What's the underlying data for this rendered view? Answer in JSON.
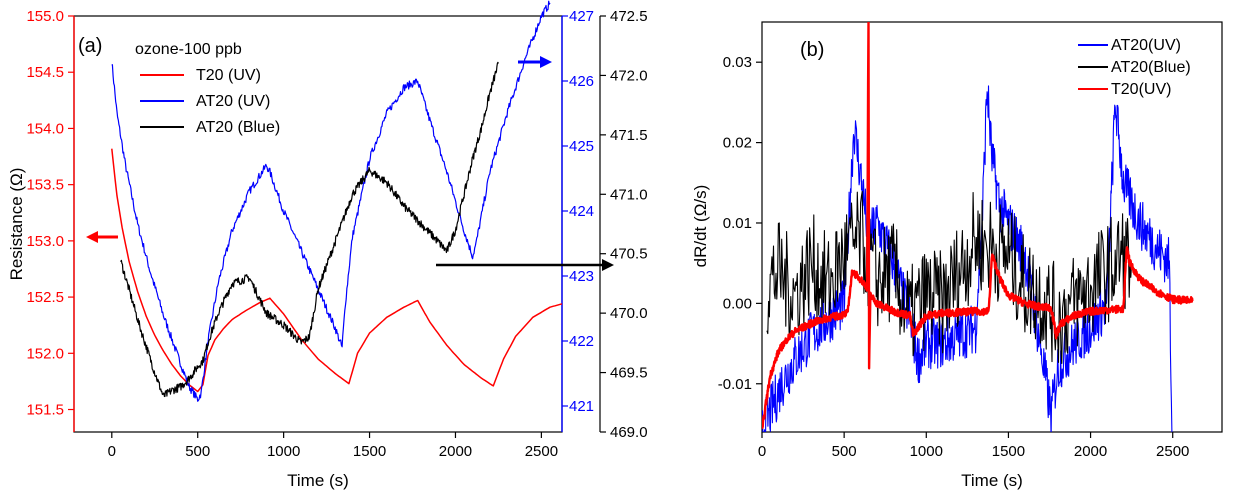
{
  "chart_data": [
    {
      "panel": "(a)",
      "type": "line",
      "xlabel": "Time (s)",
      "ylabel": "Resistance (Ω)",
      "xlim": [
        -220,
        2620
      ],
      "xticks": [
        0,
        500,
        1000,
        1500,
        2000,
        2500
      ],
      "legend_title": "ozone-100 ppb",
      "legend_position": "top-left",
      "y_axes": [
        {
          "id": "red",
          "side": "left",
          "color": "#ff0000",
          "lim": [
            151.3,
            155.0
          ],
          "ticks": [
            "155.0",
            "154.5",
            "154.0",
            "153.5",
            "153.0",
            "152.5",
            "152.0",
            "151.5"
          ]
        },
        {
          "id": "blue",
          "side": "right",
          "color": "#0000ff",
          "lim": [
            420.6,
            427.0
          ],
          "ticks": [
            "427",
            "426",
            "425",
            "424",
            "423",
            "422",
            "421"
          ]
        },
        {
          "id": "black",
          "side": "right-outer",
          "color": "#000000",
          "lim": [
            469.0,
            472.5
          ],
          "ticks": [
            "472.5",
            "472.0",
            "471.5",
            "471.0",
            "470.5",
            "470.0",
            "469.5",
            "469.0"
          ]
        }
      ],
      "annotations": [
        {
          "type": "arrow",
          "points_to": "left axis",
          "color": "#ff0000"
        },
        {
          "type": "arrow",
          "points_to": "blue axis",
          "color": "#0000ff"
        },
        {
          "type": "arrow",
          "points_to": "outer black axis",
          "color": "#000000"
        }
      ],
      "series": [
        {
          "name": "T20 (UV)",
          "color": "#ff0000",
          "axis": "red",
          "x": [
            0,
            30,
            60,
            100,
            150,
            200,
            250,
            300,
            350,
            400,
            450,
            500,
            530,
            560,
            600,
            650,
            700,
            780,
            860,
            920,
            1000,
            1100,
            1200,
            1300,
            1380,
            1430,
            1500,
            1600,
            1700,
            1780,
            1850,
            1950,
            2050,
            2150,
            2220,
            2280,
            2350,
            2450,
            2550,
            2620
          ],
          "y": [
            153.82,
            153.4,
            153.12,
            152.82,
            152.55,
            152.33,
            152.16,
            152.02,
            151.9,
            151.8,
            151.72,
            151.66,
            151.72,
            151.98,
            152.12,
            152.22,
            152.3,
            152.38,
            152.45,
            152.49,
            152.35,
            152.13,
            151.95,
            151.82,
            151.73,
            152.0,
            152.18,
            152.32,
            152.41,
            152.47,
            152.28,
            152.07,
            151.9,
            151.78,
            151.71,
            151.95,
            152.15,
            152.32,
            152.41,
            152.44
          ]
        },
        {
          "name": "AT20 (UV)",
          "color": "#0000ff",
          "axis": "blue",
          "x": [
            0,
            30,
            80,
            150,
            220,
            300,
            380,
            450,
            500,
            520,
            560,
            620,
            700,
            800,
            900,
            920,
            1000,
            1100,
            1200,
            1300,
            1340,
            1360,
            1400,
            1500,
            1600,
            1700,
            1780,
            1850,
            1950,
            2050,
            2100,
            2120,
            2200,
            2300,
            2400,
            2500,
            2550
          ],
          "y": [
            426.3,
            425.5,
            424.7,
            423.8,
            423.1,
            422.4,
            421.8,
            421.3,
            421.1,
            421.2,
            422.0,
            422.9,
            423.7,
            424.3,
            424.7,
            424.6,
            424.0,
            423.4,
            422.8,
            422.2,
            421.9,
            422.6,
            423.6,
            424.8,
            425.5,
            425.9,
            426.0,
            425.4,
            424.6,
            423.7,
            423.3,
            423.5,
            424.6,
            425.5,
            426.3,
            427.0,
            427.2
          ]
        },
        {
          "name": "AT20 (Blue)",
          "color": "#000000",
          "axis": "black",
          "x": [
            50,
            80,
            120,
            160,
            200,
            250,
            300,
            350,
            400,
            450,
            500,
            530,
            570,
            620,
            700,
            800,
            900,
            1000,
            1100,
            1150,
            1200,
            1300,
            1400,
            1500,
            1600,
            1700,
            1800,
            1900,
            1950,
            2000,
            2050,
            2100,
            2150,
            2200,
            2250
          ],
          "y": [
            470.45,
            470.3,
            470.1,
            469.9,
            469.72,
            469.5,
            469.3,
            469.35,
            469.38,
            469.45,
            469.55,
            469.6,
            469.8,
            470.0,
            470.25,
            470.3,
            470.0,
            469.9,
            469.75,
            469.8,
            470.2,
            470.6,
            471.0,
            471.2,
            471.1,
            470.9,
            470.75,
            470.6,
            470.52,
            470.7,
            471.0,
            471.3,
            471.55,
            471.85,
            472.1
          ]
        }
      ]
    },
    {
      "panel": "(b)",
      "type": "line",
      "xlabel": "Time (s)",
      "ylabel": "dR/dt (Ω/s)",
      "xlim": [
        0,
        2800
      ],
      "ylim": [
        -0.016,
        0.035
      ],
      "xticks": [
        "0",
        "500",
        "1000",
        "1500",
        "2000",
        "2500"
      ],
      "yticks": [
        "0.03",
        "0.02",
        "0.01",
        "0.00",
        "-0.01"
      ],
      "legend_position": "top-right",
      "series": [
        {
          "name": "AT20(UV)",
          "color": "#0000ff",
          "x": [
            0,
            60,
            120,
            200,
            300,
            400,
            500,
            560,
            600,
            650,
            700,
            800,
            900,
            950,
            1000,
            1100,
            1200,
            1300,
            1340,
            1370,
            1400,
            1450,
            1500,
            1600,
            1700,
            1760,
            1800,
            1900,
            2000,
            2100,
            2150,
            2200,
            2300,
            2400,
            2480,
            2495
          ],
          "y": [
            -0.016,
            -0.013,
            -0.01,
            -0.007,
            -0.004,
            -0.002,
            0.0,
            0.022,
            0.016,
            0.008,
            0.01,
            0.005,
            -0.002,
            -0.007,
            -0.005,
            -0.005,
            -0.004,
            -0.003,
            0.01,
            0.027,
            0.018,
            0.012,
            0.01,
            0.006,
            -0.006,
            -0.014,
            -0.008,
            -0.005,
            -0.003,
            0.0,
            0.025,
            0.015,
            0.01,
            0.007,
            0.005,
            -0.016
          ]
        },
        {
          "name": "AT20(Blue)",
          "color": "#000000",
          "x": [
            30,
            100,
            200,
            300,
            400,
            500,
            600,
            700,
            800,
            900,
            1000,
            1100,
            1200,
            1300,
            1400,
            1500,
            1600,
            1700,
            1800,
            1900,
            2000,
            2100,
            2200,
            2250
          ],
          "y": [
            0.002,
            0.004,
            0.001,
            0.005,
            0.002,
            0.006,
            0.008,
            0.003,
            0.004,
            -0.002,
            0.001,
            0.0,
            0.004,
            0.008,
            0.007,
            0.006,
            0.002,
            0.001,
            -0.002,
            0.0,
            0.002,
            0.004,
            0.006,
            0.005
          ]
        },
        {
          "name": "T20(UV)",
          "color": "#ff0000",
          "x": [
            0,
            20,
            50,
            100,
            150,
            200,
            300,
            400,
            500,
            520,
            550,
            600,
            640,
            648,
            652,
            660,
            700,
            800,
            900,
            920,
            950,
            1000,
            1100,
            1200,
            1300,
            1380,
            1400,
            1450,
            1500,
            1600,
            1700,
            1760,
            1790,
            1820,
            1900,
            2000,
            2100,
            2200,
            2220,
            2240,
            2300,
            2400,
            2500,
            2620
          ],
          "y": [
            -0.016,
            -0.013,
            -0.009,
            -0.006,
            -0.0045,
            -0.0035,
            -0.0025,
            -0.0018,
            -0.0014,
            -0.0012,
            0.004,
            0.003,
            0.002,
            0.035,
            -0.008,
            0.001,
            0.0,
            -0.001,
            -0.0015,
            -0.004,
            -0.003,
            -0.0015,
            -0.0012,
            -0.0011,
            -0.001,
            -0.001,
            0.006,
            0.003,
            0.001,
            0.0,
            -0.0005,
            -0.0005,
            -0.004,
            -0.0025,
            -0.0015,
            -0.001,
            -0.0008,
            -0.0007,
            0.007,
            0.005,
            0.003,
            0.0015,
            0.0005,
            0.0003
          ]
        }
      ]
    }
  ]
}
